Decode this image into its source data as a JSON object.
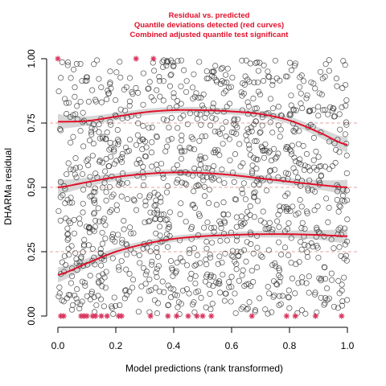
{
  "chart_data": {
    "type": "scatter",
    "title_lines": [
      "Residual vs. predicted",
      "Quantile deviations detected (red curves)",
      "Combined adjusted quantile test significant"
    ],
    "xlabel": "Model predictions (rank transformed)",
    "ylabel": "DHARMa residual",
    "xlim": [
      0,
      1
    ],
    "ylim": [
      0,
      1
    ],
    "xticks": [
      0.0,
      0.2,
      0.4,
      0.6,
      0.8,
      1.0
    ],
    "xtick_labels": [
      "0.0",
      "0.2",
      "0.4",
      "0.6",
      "0.8",
      "1.0"
    ],
    "yticks": [
      0.0,
      0.25,
      0.5,
      0.75,
      1.0
    ],
    "ytick_labels": [
      "0.00",
      "0.25",
      "0.50",
      "0.75",
      "1.00"
    ],
    "reference_lines": [
      0.25,
      0.5,
      0.75
    ],
    "grid": false,
    "point_count": 1200,
    "colors": {
      "title": "#e0102a",
      "quantile_curve": "#e0102a",
      "points": "#333333",
      "outliers": "#d6335c",
      "band": "#d3d3d3",
      "reference_line": "#e6a3a3"
    },
    "quantile_curves": [
      {
        "quantile": 0.25,
        "x": [
          0.0,
          0.1,
          0.2,
          0.3,
          0.4,
          0.5,
          0.6,
          0.7,
          0.8,
          0.9,
          1.0
        ],
        "y": [
          0.16,
          0.205,
          0.25,
          0.28,
          0.3,
          0.31,
          0.315,
          0.318,
          0.318,
          0.315,
          0.31
        ]
      },
      {
        "quantile": 0.5,
        "x": [
          0.0,
          0.1,
          0.2,
          0.3,
          0.4,
          0.5,
          0.6,
          0.7,
          0.8,
          0.9,
          1.0
        ],
        "y": [
          0.5,
          0.52,
          0.54,
          0.552,
          0.558,
          0.556,
          0.548,
          0.535,
          0.522,
          0.51,
          0.5
        ]
      },
      {
        "quantile": 0.75,
        "x": [
          0.0,
          0.1,
          0.2,
          0.3,
          0.4,
          0.5,
          0.6,
          0.7,
          0.8,
          0.9,
          1.0
        ],
        "y": [
          0.755,
          0.758,
          0.775,
          0.792,
          0.8,
          0.8,
          0.795,
          0.785,
          0.76,
          0.715,
          0.665
        ]
      }
    ],
    "outliers": [
      {
        "x": 0.0,
        "y": 1.0
      },
      {
        "x": 0.27,
        "y": 1.0
      },
      {
        "x": 0.33,
        "y": 1.0
      },
      {
        "x": 0.01,
        "y": 0.0
      },
      {
        "x": 0.02,
        "y": 0.0
      },
      {
        "x": 0.08,
        "y": 0.0
      },
      {
        "x": 0.09,
        "y": 0.0
      },
      {
        "x": 0.1,
        "y": 0.0
      },
      {
        "x": 0.12,
        "y": 0.0
      },
      {
        "x": 0.13,
        "y": 0.0
      },
      {
        "x": 0.15,
        "y": 0.0
      },
      {
        "x": 0.17,
        "y": 0.0
      },
      {
        "x": 0.21,
        "y": 0.0
      },
      {
        "x": 0.22,
        "y": 0.0
      },
      {
        "x": 0.32,
        "y": 0.0
      },
      {
        "x": 0.38,
        "y": 0.0
      },
      {
        "x": 0.41,
        "y": 0.0
      },
      {
        "x": 0.45,
        "y": 0.0
      },
      {
        "x": 0.48,
        "y": 0.0
      },
      {
        "x": 0.5,
        "y": 0.0
      },
      {
        "x": 0.53,
        "y": 0.0
      },
      {
        "x": 0.67,
        "y": 0.0
      },
      {
        "x": 0.79,
        "y": 0.0
      },
      {
        "x": 0.82,
        "y": 0.0
      },
      {
        "x": 0.89,
        "y": 0.0
      },
      {
        "x": 0.98,
        "y": 0.0
      }
    ]
  }
}
